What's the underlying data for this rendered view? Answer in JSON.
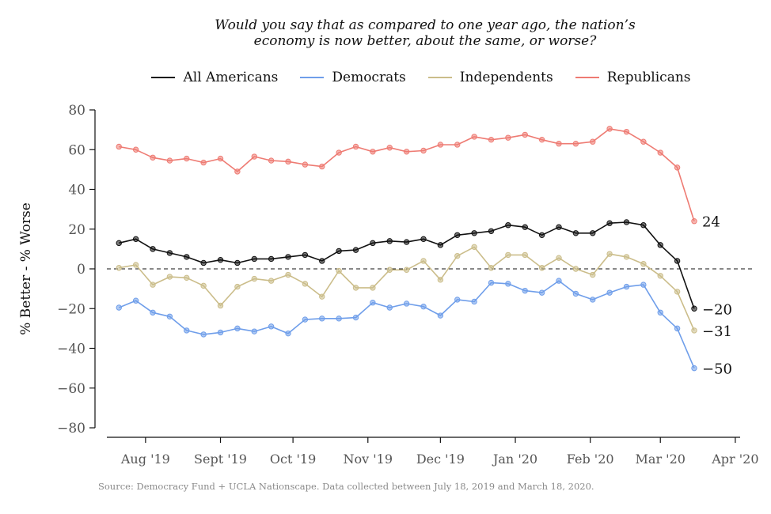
{
  "chart_data": {
    "type": "line",
    "title": "Would you say that as compared to one year ago, the nation’s economy is now better, about the same, or worse?",
    "title_lines": [
      "Would you say that as compared to one year ago, the nation’s",
      "economy is now better, about the same, or worse?"
    ],
    "ylabel": "% Better - % Worse",
    "xlabel": "",
    "ylim": [
      -80,
      80
    ],
    "yticks": [
      80,
      60,
      40,
      20,
      0,
      -20,
      -40,
      -60,
      -80
    ],
    "ytick_labels": [
      "80",
      "60",
      "40",
      "20",
      "0",
      "−20",
      "−40",
      "−60",
      "−80"
    ],
    "x_ticks": [
      {
        "label": "Aug '19",
        "date": "2019-08-01"
      },
      {
        "label": "Sept '19",
        "date": "2019-09-01"
      },
      {
        "label": "Oct '19",
        "date": "2019-10-01"
      },
      {
        "label": "Nov '19",
        "date": "2019-11-01"
      },
      {
        "label": "Dec '19",
        "date": "2019-12-01"
      },
      {
        "label": "Jan '20",
        "date": "2020-01-01"
      },
      {
        "label": "Feb '20",
        "date": "2020-02-01"
      },
      {
        "label": "Mar '20",
        "date": "2020-03-01"
      },
      {
        "label": "Apr '20",
        "date": "2020-04-01"
      }
    ],
    "x_range": [
      "2019-07-16",
      "2020-04-03"
    ],
    "zero_line": "dashed",
    "grid": false,
    "legend_position": "top",
    "x": [
      "2019-07-21",
      "2019-07-28",
      "2019-08-04",
      "2019-08-11",
      "2019-08-18",
      "2019-08-25",
      "2019-09-01",
      "2019-09-08",
      "2019-09-15",
      "2019-09-22",
      "2019-09-29",
      "2019-10-06",
      "2019-10-13",
      "2019-10-20",
      "2019-10-27",
      "2019-11-03",
      "2019-11-10",
      "2019-11-17",
      "2019-11-24",
      "2019-12-01",
      "2019-12-08",
      "2019-12-15",
      "2019-12-22",
      "2019-12-29",
      "2020-01-05",
      "2020-01-12",
      "2020-01-19",
      "2020-01-26",
      "2020-02-02",
      "2020-02-09",
      "2020-02-16",
      "2020-02-23",
      "2020-03-01",
      "2020-03-08",
      "2020-03-15"
    ],
    "series": [
      {
        "name": "All Americans",
        "color": "#111111",
        "end_label": "−20",
        "values": [
          13,
          15,
          10,
          8,
          6,
          3,
          4.5,
          3,
          5,
          5,
          6,
          7,
          4,
          9,
          9.5,
          13,
          14,
          13.5,
          15,
          12,
          17,
          18,
          19,
          22,
          21,
          17,
          21,
          18,
          18,
          23,
          23.5,
          22,
          12,
          4,
          -20
        ]
      },
      {
        "name": "Democrats",
        "color": "#6f9eea",
        "end_label": "−50",
        "values": [
          -19.5,
          -16,
          -22,
          -24,
          -31,
          -33,
          -32,
          -30,
          -31.5,
          -29,
          -32.5,
          -25.5,
          -25,
          -25,
          -24.5,
          -17,
          -19.5,
          -17.5,
          -19,
          -23.5,
          -15.5,
          -16.5,
          -7,
          -7.5,
          -11,
          -12,
          -6,
          -12.5,
          -15.5,
          -12,
          -9,
          -8,
          -22,
          -30,
          -50
        ]
      },
      {
        "name": "Independents",
        "color": "#cbbd8a",
        "end_label": "−31",
        "values": [
          0.5,
          2,
          -8,
          -4,
          -4.5,
          -8.5,
          -18.5,
          -9,
          -5,
          -6,
          -3,
          -7.5,
          -14,
          -1,
          -9.5,
          -9.5,
          -0.5,
          -0.5,
          4,
          -5.5,
          6.5,
          11,
          0.5,
          7,
          7,
          0.5,
          5.5,
          0,
          -3,
          7.5,
          6,
          2.5,
          -3.5,
          -11.5,
          -31
        ]
      },
      {
        "name": "Republicans",
        "color": "#ee7b73",
        "end_label": "24",
        "values": [
          61.5,
          60,
          56,
          54.5,
          55.5,
          53.5,
          55.5,
          49,
          56.5,
          54.5,
          54,
          52.5,
          51.5,
          58.5,
          61.5,
          59,
          61,
          59,
          59.5,
          62.5,
          62.5,
          66.5,
          65,
          66,
          67.5,
          65,
          63,
          63,
          64,
          70.5,
          69,
          64,
          58.5,
          51,
          24
        ]
      }
    ],
    "source": "Source: Democracy Fund + UCLA Nationscape. Data collected between July 18, 2019 and March 18, 2020."
  }
}
